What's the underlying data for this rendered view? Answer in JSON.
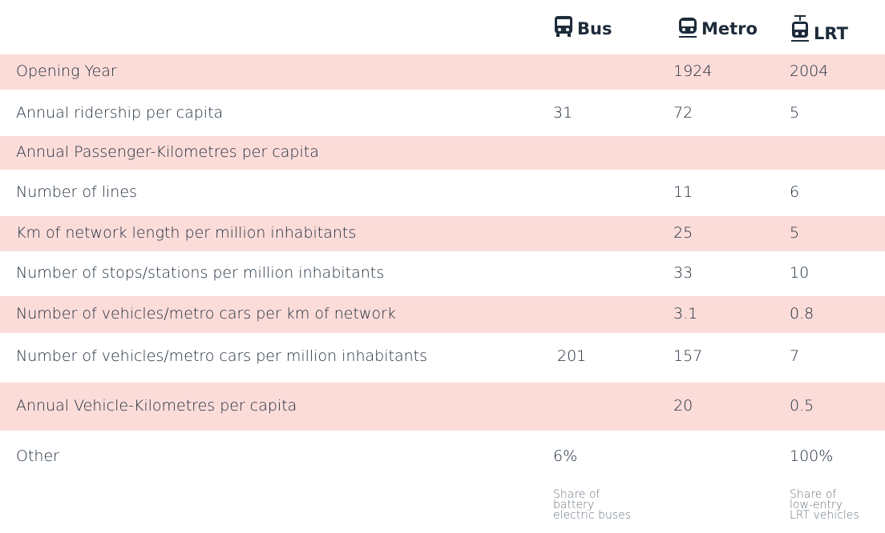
{
  "table": {
    "columns": [
      "Bus",
      "Metro",
      "LRT"
    ],
    "rows": [
      {
        "label": "Opening Year",
        "cells": [
          null,
          1924,
          2004
        ]
      },
      {
        "label": "Annual ridership per capita",
        "cells": [
          31,
          72,
          5
        ]
      },
      {
        "label": "Annual Passenger-Kilometres per capita",
        "cells": [
          null,
          null,
          null
        ]
      },
      {
        "label": "Number of lines",
        "cells": [
          null,
          11,
          6
        ]
      },
      {
        "label": "Km of network length per million inhabitants",
        "cells": [
          null,
          25,
          5
        ]
      },
      {
        "label": "Number of stops/stations per million inhabitants",
        "cells": [
          null,
          33,
          10
        ]
      },
      {
        "label": "Number of vehicles/metro cars per km of network",
        "cells": [
          null,
          3.1,
          0.8
        ]
      },
      {
        "label": "Number of vehicles/metro cars per million inhabitants",
        "cells": [
          201,
          157,
          7
        ]
      },
      {
        "label": "Annual Vehicle-Kilometres per capita",
        "cells": [
          null,
          20,
          0.5
        ]
      },
      {
        "label": "Other",
        "cells": [
          "6%",
          null,
          "100%"
        ]
      }
    ],
    "notes": [
      {
        "column": 0,
        "text": [
          "Share of",
          "battery",
          "electric buses"
        ]
      },
      {
        "column": 2,
        "text": [
          "Share of",
          "low-entry",
          "LRT vehicles"
        ]
      }
    ]
  }
}
